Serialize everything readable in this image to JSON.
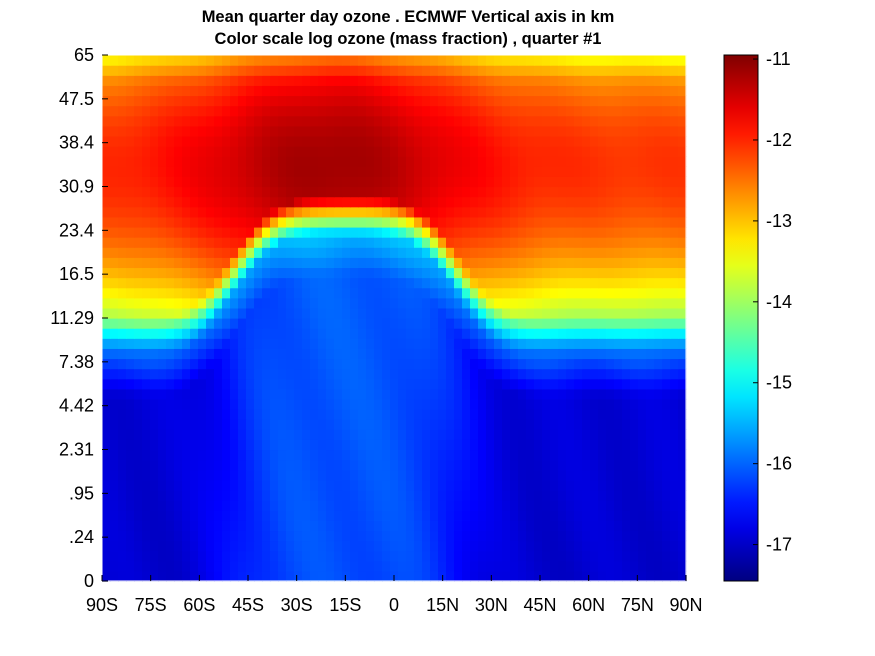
{
  "chart_data": {
    "type": "heatmap",
    "title": "Mean quarter day ozone .  ECMWF Vertical axis in km",
    "subtitle": "Color scale log ozone (mass fraction) ,  quarter #1",
    "x_tick_labels": [
      "90S",
      "75S",
      "60S",
      "45S",
      "30S",
      "15S",
      "0",
      "15N",
      "30N",
      "45N",
      "60N",
      "75N",
      "90N"
    ],
    "x_tick_values": [
      -90,
      -75,
      -60,
      -45,
      -30,
      -15,
      0,
      15,
      30,
      45,
      60,
      75,
      90
    ],
    "y_tick_labels": [
      "0",
      ".24",
      ".95",
      "2.31",
      "4.42",
      "7.38",
      "11.29",
      "16.5",
      "23.4",
      "30.9",
      "38.4",
      "47.5",
      "65"
    ],
    "xlim": [
      -90,
      90
    ],
    "ylim": [
      0,
      65
    ],
    "colorbar": {
      "tick_labels": [
        "-11",
        "-12",
        "-13",
        "-14",
        "-15",
        "-16",
        "-17"
      ],
      "tick_values": [
        -11,
        -12,
        -13,
        -14,
        -15,
        -16,
        -17
      ],
      "range": [
        -17.45,
        -10.95
      ],
      "colormap": "jet"
    },
    "field": {
      "description_levels": [
        0,
        0.24,
        0.95,
        2.31,
        4.42,
        7.38,
        11.29,
        16.5,
        23.4,
        30.9,
        38.4,
        47.5,
        65
      ],
      "max_value": -11.1,
      "max_location": {
        "lat": -20,
        "altitude_km": 34
      },
      "min_value": -17.4
    }
  }
}
